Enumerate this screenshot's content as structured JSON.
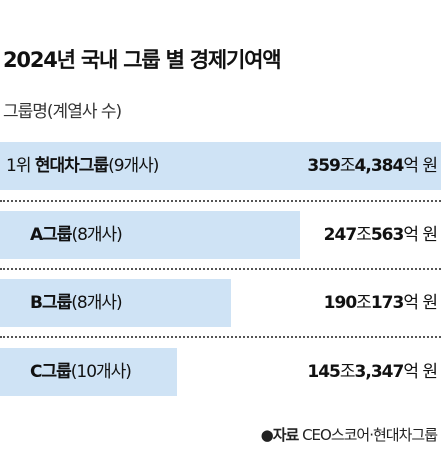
{
  "title": "2024년 국내 그룹 별 경제기여액",
  "subtitle": "그룹명(계열사 수)",
  "bar_color": "#cfe3f5",
  "unit": "억 원",
  "chart_data": {
    "type": "bar",
    "orientation": "horizontal",
    "title": "2024년 국내 그룹 별 경제기여액",
    "categories": [
      "현대차그룹",
      "A그룹",
      "B그룹",
      "C그룹"
    ],
    "values": [
      3594384,
      2470563,
      1900173,
      1453347
    ],
    "unit": "억 원",
    "rows": [
      {
        "rank": "1위 ",
        "name": "현대차그룹",
        "count": "(9개사)",
        "v_jo": "359",
        "jo": "조",
        "v_eok": "4,384",
        "eok": "억 원",
        "value": 3594384
      },
      {
        "rank": "",
        "name": "A그룹",
        "count": "(8개사)",
        "v_jo": "247",
        "jo": "조",
        "v_eok": "563",
        "eok": "억 원",
        "value": 2470563
      },
      {
        "rank": "",
        "name": "B그룹",
        "count": "(8개사)",
        "v_jo": "190",
        "jo": "조",
        "v_eok": "173",
        "eok": "억 원",
        "value": 1900173
      },
      {
        "rank": "",
        "name": "C그룹",
        "count": "(10개사)",
        "v_jo": "145",
        "jo": "조",
        "v_eok": "3,347",
        "eok": "억 원",
        "value": 1453347
      }
    ]
  },
  "source": {
    "bullet": "●",
    "label": "자료",
    "text": " CEO스코어·현대차그룹"
  }
}
